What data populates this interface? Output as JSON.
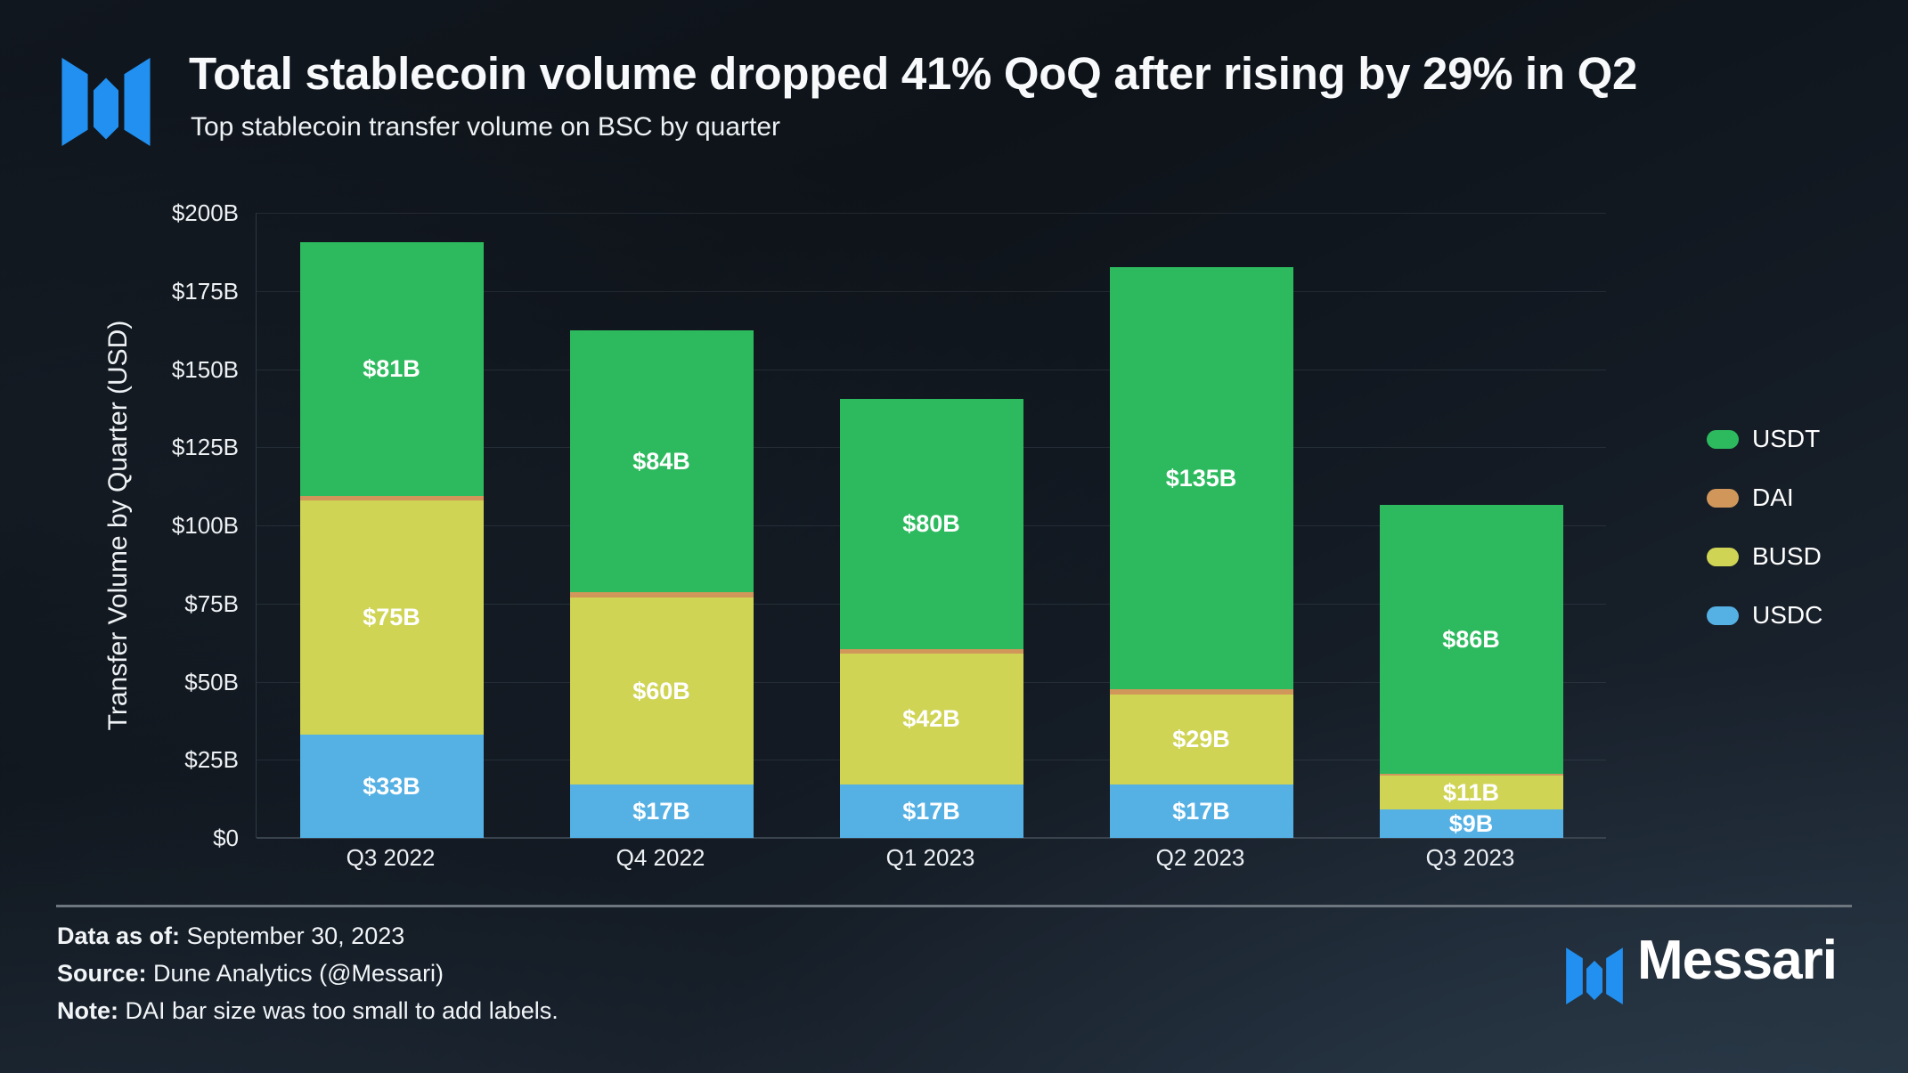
{
  "header": {
    "title": "Total stablecoin volume dropped 41% QoQ after rising by 29% in Q2",
    "subtitle": "Top stablecoin transfer volume on BSC by quarter"
  },
  "chart_data": {
    "type": "bar",
    "variant": "stacked",
    "title": "Total stablecoin volume dropped 41% QoQ after rising by 29% in Q2",
    "subtitle": "Top stablecoin transfer volume on BSC by quarter",
    "categories": [
      "Q3 2022",
      "Q4 2022",
      "Q1 2023",
      "Q2 2023",
      "Q3 2023"
    ],
    "series": [
      {
        "name": "USDC",
        "color": "#55b0e4",
        "values": [
          33,
          17,
          17,
          17,
          9
        ],
        "labels": [
          "$33B",
          "$17B",
          "$17B",
          "$17B",
          "$9B"
        ]
      },
      {
        "name": "BUSD",
        "color": "#cfd454",
        "values": [
          75,
          60,
          42,
          29,
          11
        ],
        "labels": [
          "$75B",
          "$60B",
          "$42B",
          "$29B",
          "$11B"
        ]
      },
      {
        "name": "DAI",
        "color": "#d1975a",
        "values": [
          1.5,
          1.5,
          1.5,
          1.5,
          0.5
        ],
        "labels": [
          "",
          "",
          "",
          "",
          ""
        ],
        "values_note": "estimated from sliver height; chart note says DAI bars too small to label"
      },
      {
        "name": "USDT",
        "color": "#2dba5e",
        "values": [
          81,
          84,
          80,
          135,
          86
        ],
        "labels": [
          "$81B",
          "$84B",
          "$80B",
          "$135B",
          "$86B"
        ]
      }
    ],
    "stack_order_bottom_to_top": [
      "USDC",
      "BUSD",
      "DAI",
      "USDT"
    ],
    "legend": [
      {
        "label": "USDT",
        "color": "#2dba5e"
      },
      {
        "label": "DAI",
        "color": "#d1975a"
      },
      {
        "label": "BUSD",
        "color": "#cfd454"
      },
      {
        "label": "USDC",
        "color": "#55b0e4"
      }
    ],
    "legend_position": "right",
    "xlabel": "",
    "ylabel": "Transfer Volume by Quarter (USD)",
    "ylim": [
      0,
      200
    ],
    "ytick_values": [
      200,
      175,
      150,
      125,
      100,
      75,
      50,
      25,
      0
    ],
    "ytick_labels": [
      "$200B",
      "$175B",
      "$150B",
      "$125B",
      "$100B",
      "$75B",
      "$50B",
      "$25B",
      "$0"
    ],
    "grid": true
  },
  "footer": {
    "data_as_of_label": "Data as of:",
    "data_as_of_value": "September 30, 2023",
    "source_label": "Source:",
    "source_value": "Dune Analytics (@Messari)",
    "note_label": "Note:",
    "note_value": "DAI bar size was too small to add labels.",
    "brand": "Messari"
  },
  "colors": {
    "logo_blue": "#2190f0",
    "usdt_green": "#2dba5e",
    "dai_orange": "#d1975a",
    "busd_yellow": "#cfd454",
    "usdc_blue": "#55b0e4",
    "background_dark": "#12181f",
    "divider_gray": "#6d757e"
  }
}
